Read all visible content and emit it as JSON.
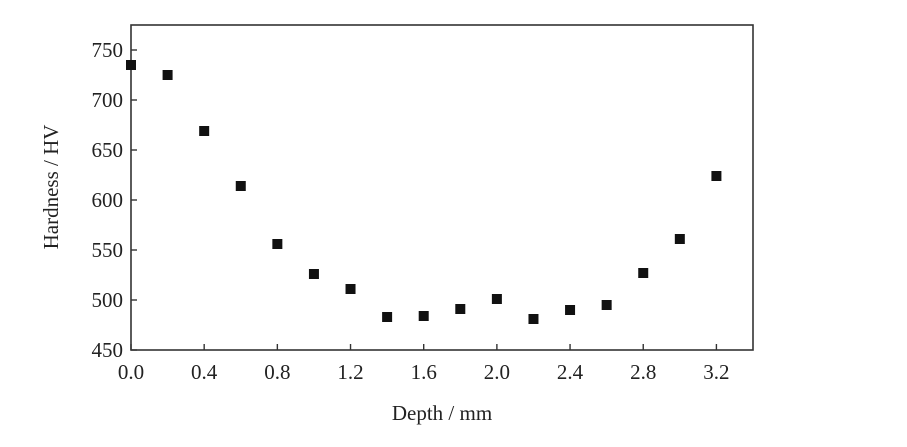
{
  "chart_data": {
    "type": "scatter",
    "title": "",
    "xlabel": "Depth / mm",
    "ylabel": "Hardness / HV",
    "xlim": [
      0.0,
      3.4
    ],
    "ylim": [
      450,
      775
    ],
    "xticks": [
      0.0,
      0.4,
      0.8,
      1.2,
      1.6,
      2.0,
      2.4,
      2.8,
      3.2
    ],
    "xtick_labels": [
      "0.0",
      "0.4",
      "0.8",
      "1.2",
      "1.6",
      "2.0",
      "2.4",
      "2.8",
      "3.2"
    ],
    "yticks": [
      450,
      500,
      550,
      600,
      650,
      700,
      750
    ],
    "ytick_labels": [
      "450",
      "500",
      "550",
      "600",
      "650",
      "700",
      "750"
    ],
    "grid": false,
    "legend": "none",
    "marker": "square",
    "series": [
      {
        "color": "#111111",
        "x": [
          0.0,
          0.2,
          0.4,
          0.6,
          0.8,
          1.0,
          1.2,
          1.4,
          1.6,
          1.8,
          2.0,
          2.2,
          2.4,
          2.6,
          2.8,
          3.0,
          3.2
        ],
        "y": [
          735,
          725,
          669,
          614,
          556,
          526,
          511,
          483,
          484,
          491,
          501,
          481,
          490,
          495,
          527,
          561,
          624
        ]
      }
    ]
  }
}
